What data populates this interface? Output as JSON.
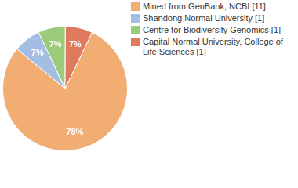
{
  "chart_data": {
    "type": "pie",
    "categories": [
      "Mined from GenBank, NCBI [11]",
      "Shandong Normal University [1]",
      "Centre for Biodiversity Genomics [1]",
      "Capital Normal University, College of Life Sciences [1]"
    ],
    "values": [
      78,
      7,
      7,
      7
    ],
    "value_labels": [
      "78%",
      "7%",
      "7%",
      "7%"
    ],
    "colors": [
      "#f2ad72",
      "#a3bde3",
      "#9ccc7a",
      "#e07a5f"
    ],
    "legend": "right",
    "data_labels": true
  }
}
